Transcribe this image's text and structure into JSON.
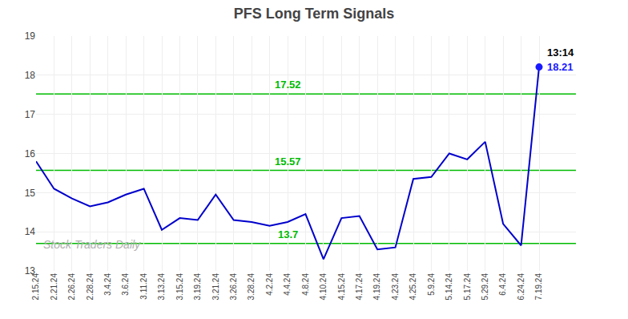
{
  "chart_data": {
    "type": "line",
    "title": "PFS Long Term Signals",
    "categories": [
      "2.15.24",
      "2.21.24",
      "2.26.24",
      "2.28.24",
      "3.4.24",
      "3.6.24",
      "3.11.24",
      "3.13.24",
      "3.15.24",
      "3.19.24",
      "3.21.24",
      "3.26.24",
      "3.28.24",
      "4.2.24",
      "4.4.24",
      "4.8.24",
      "4.10.24",
      "4.15.24",
      "4.17.24",
      "4.19.24",
      "4.23.24",
      "4.25.24",
      "5.9.24",
      "5.14.24",
      "5.17.24",
      "5.29.24",
      "6.4.24",
      "6.24.24",
      "7.19.24"
    ],
    "values": [
      15.8,
      15.1,
      14.85,
      14.65,
      14.75,
      14.95,
      15.1,
      14.05,
      14.35,
      14.3,
      14.95,
      14.3,
      14.25,
      14.15,
      14.25,
      14.45,
      13.3,
      14.35,
      14.4,
      13.55,
      13.6,
      15.35,
      15.4,
      16.0,
      15.85,
      16.3,
      14.2,
      13.65,
      18.21
    ],
    "color": "#0000cc",
    "last_point_color": "#1a1aff",
    "hlines": [
      {
        "value": 17.52,
        "label": "17.52"
      },
      {
        "value": 15.57,
        "label": "15.57"
      },
      {
        "value": 13.7,
        "label": "13.7"
      }
    ],
    "hline_color": "#00bb00",
    "annotations": [
      "13:14",
      "18.21"
    ],
    "watermark": "Stock Traders Daily",
    "ylim": [
      13.0,
      19.0
    ],
    "yticks": [
      13,
      14,
      15,
      16,
      17,
      18,
      19
    ],
    "grid": true
  }
}
